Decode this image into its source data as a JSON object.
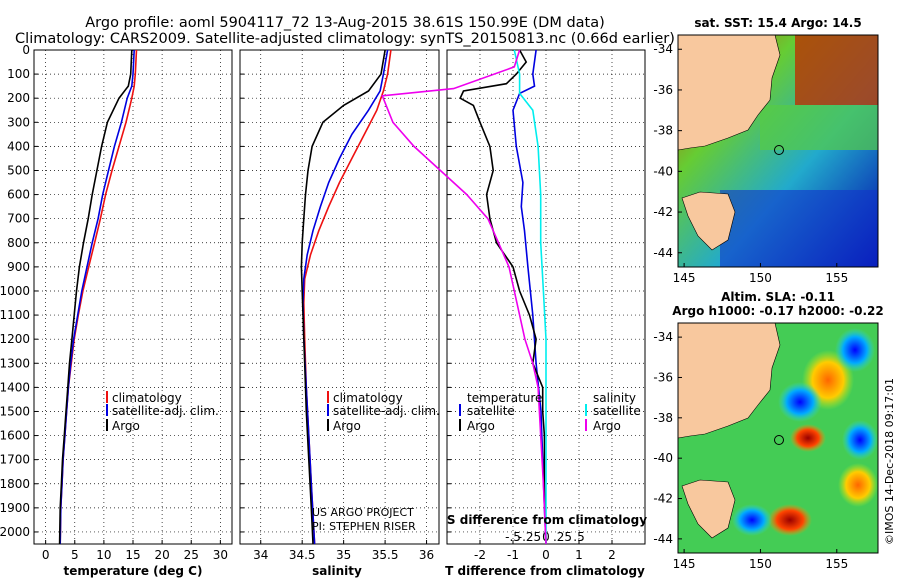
{
  "title_lines": [
    "Argo profile: aoml 5904117_72 13-Aug-2015 38.61S 150.99E (DM data)",
    "Climatology: CARS2009. Satellite-adjusted climatology: synTS_20150813.nc (0.66d earlier)"
  ],
  "credit_lines": [
    "US ARGO PROJECT",
    "PI: STEPHEN RISER"
  ],
  "timestamp": "©IMOS 14-Dec-2018 09:17:01",
  "legend_left": [
    "climatology",
    "satellite-adj. clim.",
    "Argo"
  ],
  "legend_diff": {
    "temperature_header": "temperature",
    "salinity_header": "salinity",
    "labels": [
      "satellite",
      "Argo"
    ]
  },
  "colors": {
    "climatology": "#ee1111",
    "satellite": "#0000e0",
    "argo": "#000000",
    "s_satellite": "#00eeee",
    "s_argo": "#ee00ee",
    "land": "#f8c89e"
  },
  "maps": [
    {
      "title": "sat. SST: 15.4 Argo: 14.5",
      "xticks": [
        "145",
        "150",
        "155"
      ],
      "yticks": [
        "-34",
        "-36",
        "-38",
        "-40",
        "-42",
        "-44"
      ]
    },
    {
      "title_lines": [
        "Altim. SLA: -0.11",
        "Argo h1000: -0.17 h2000: -0.22"
      ],
      "xticks": [
        "145",
        "150",
        "155"
      ],
      "yticks": [
        "-34",
        "-36",
        "-38",
        "-40",
        "-42",
        "-44"
      ]
    }
  ],
  "chart_data": [
    {
      "type": "line",
      "xlabel": "temperature (deg C)",
      "ylabel": "",
      "xlim": [
        -2,
        32
      ],
      "ylim": [
        2050,
        0
      ],
      "xticks": [
        0,
        5,
        10,
        15,
        20,
        25,
        30
      ],
      "yticks": [
        0,
        100,
        200,
        300,
        400,
        500,
        600,
        700,
        800,
        900,
        1000,
        1100,
        1200,
        1300,
        1400,
        1500,
        1600,
        1700,
        1800,
        1900,
        2000
      ],
      "series": [
        {
          "name": "climatology",
          "color_key": "climatology",
          "points": [
            [
              15.6,
              0
            ],
            [
              15.4,
              100
            ],
            [
              15.2,
              150
            ],
            [
              14.8,
              200
            ],
            [
              13.8,
              300
            ],
            [
              12.6,
              400
            ],
            [
              11.4,
              500
            ],
            [
              10.3,
              600
            ],
            [
              9.4,
              700
            ],
            [
              8.4,
              800
            ],
            [
              7.4,
              900
            ],
            [
              6.4,
              1000
            ],
            [
              5.6,
              1100
            ],
            [
              4.9,
              1200
            ],
            [
              4.4,
              1300
            ],
            [
              3.9,
              1400
            ],
            [
              3.6,
              1500
            ],
            [
              3.3,
              1600
            ],
            [
              3.0,
              1700
            ],
            [
              2.8,
              1800
            ],
            [
              2.6,
              1900
            ],
            [
              2.5,
              2050
            ]
          ]
        },
        {
          "name": "satellite-adj. clim.",
          "color_key": "satellite",
          "points": [
            [
              15.2,
              0
            ],
            [
              15.0,
              100
            ],
            [
              14.8,
              150
            ],
            [
              14.0,
              200
            ],
            [
              13.0,
              300
            ],
            [
              11.8,
              400
            ],
            [
              10.8,
              500
            ],
            [
              9.8,
              600
            ],
            [
              9.0,
              700
            ],
            [
              8.0,
              800
            ],
            [
              7.1,
              900
            ],
            [
              6.2,
              1000
            ],
            [
              5.5,
              1100
            ],
            [
              4.8,
              1200
            ],
            [
              4.3,
              1300
            ],
            [
              3.9,
              1400
            ],
            [
              3.6,
              1500
            ],
            [
              3.3,
              1600
            ],
            [
              3.0,
              1700
            ],
            [
              2.8,
              1800
            ],
            [
              2.6,
              1900
            ],
            [
              2.5,
              2050
            ]
          ]
        },
        {
          "name": "Argo",
          "color_key": "argo",
          "points": [
            [
              14.8,
              0
            ],
            [
              14.6,
              100
            ],
            [
              14.2,
              150
            ],
            [
              12.6,
              200
            ],
            [
              10.6,
              300
            ],
            [
              9.6,
              400
            ],
            [
              8.8,
              500
            ],
            [
              8.0,
              600
            ],
            [
              7.3,
              700
            ],
            [
              6.5,
              800
            ],
            [
              5.8,
              900
            ],
            [
              5.3,
              1000
            ],
            [
              4.9,
              1100
            ],
            [
              4.5,
              1200
            ],
            [
              4.1,
              1300
            ],
            [
              3.8,
              1400
            ],
            [
              3.5,
              1500
            ],
            [
              3.2,
              1600
            ],
            [
              2.9,
              1700
            ],
            [
              2.7,
              1800
            ],
            [
              2.5,
              1900
            ],
            [
              2.4,
              2050
            ]
          ]
        }
      ]
    },
    {
      "type": "line",
      "xlabel": "salinity",
      "ylabel": "",
      "xlim": [
        33.75,
        36.15
      ],
      "ylim": [
        2050,
        0
      ],
      "xticks": [
        34,
        34.5,
        35,
        35.5,
        36
      ],
      "series": [
        {
          "name": "climatology",
          "color_key": "climatology",
          "points": [
            [
              35.57,
              0
            ],
            [
              35.53,
              100
            ],
            [
              35.48,
              170
            ],
            [
              35.4,
              250
            ],
            [
              35.25,
              350
            ],
            [
              35.1,
              450
            ],
            [
              34.95,
              550
            ],
            [
              34.82,
              650
            ],
            [
              34.7,
              750
            ],
            [
              34.6,
              850
            ],
            [
              34.53,
              950
            ],
            [
              34.52,
              1050
            ],
            [
              34.53,
              1200
            ],
            [
              34.55,
              1400
            ],
            [
              34.58,
              1600
            ],
            [
              34.61,
              1800
            ],
            [
              34.65,
              2050
            ]
          ]
        },
        {
          "name": "satellite-adj. clim.",
          "color_key": "satellite",
          "points": [
            [
              35.53,
              0
            ],
            [
              35.48,
              100
            ],
            [
              35.44,
              170
            ],
            [
              35.3,
              250
            ],
            [
              35.1,
              350
            ],
            [
              34.95,
              450
            ],
            [
              34.82,
              550
            ],
            [
              34.72,
              650
            ],
            [
              34.63,
              750
            ],
            [
              34.56,
              850
            ],
            [
              34.52,
              950
            ],
            [
              34.51,
              1050
            ],
            [
              34.52,
              1200
            ],
            [
              34.55,
              1400
            ],
            [
              34.58,
              1600
            ],
            [
              34.61,
              1800
            ],
            [
              34.65,
              2050
            ]
          ]
        },
        {
          "name": "Argo",
          "color_key": "argo",
          "points": [
            [
              35.5,
              0
            ],
            [
              35.45,
              100
            ],
            [
              35.3,
              170
            ],
            [
              35.0,
              230
            ],
            [
              34.75,
              300
            ],
            [
              34.62,
              400
            ],
            [
              34.57,
              500
            ],
            [
              34.54,
              600
            ],
            [
              34.52,
              700
            ],
            [
              34.5,
              800
            ],
            [
              34.49,
              900
            ],
            [
              34.5,
              1000
            ],
            [
              34.51,
              1100
            ],
            [
              34.53,
              1300
            ],
            [
              34.55,
              1500
            ],
            [
              34.58,
              1700
            ],
            [
              34.61,
              1900
            ],
            [
              34.63,
              2050
            ]
          ]
        }
      ]
    },
    {
      "type": "line",
      "xlabel": "T difference from climatology",
      "x2label": "S difference from climatology",
      "ylabel": "",
      "xlim": [
        -3,
        3
      ],
      "ylim": [
        2050,
        0
      ],
      "xticks": [
        -2,
        -1,
        0,
        1,
        2
      ],
      "x2ticks": [
        -0.5,
        -0.25,
        0,
        0.25,
        0.5
      ],
      "series": [
        {
          "name": "temperature satellite",
          "color_key": "satellite",
          "points": [
            [
              -0.3,
              0
            ],
            [
              -0.4,
              100
            ],
            [
              -0.35,
              150
            ],
            [
              -0.8,
              180
            ],
            [
              -1.0,
              250
            ],
            [
              -0.9,
              400
            ],
            [
              -0.7,
              550
            ],
            [
              -0.75,
              650
            ],
            [
              -0.65,
              750
            ],
            [
              -0.55,
              900
            ],
            [
              -0.4,
              1100
            ],
            [
              -0.3,
              1300
            ],
            [
              -0.15,
              1500
            ],
            [
              -0.1,
              1700
            ],
            [
              -0.05,
              1900
            ],
            [
              0,
              2050
            ]
          ]
        },
        {
          "name": "temperature Argo",
          "color_key": "argo",
          "points": [
            [
              -0.8,
              0
            ],
            [
              -0.6,
              50
            ],
            [
              -0.9,
              100
            ],
            [
              -1.2,
              140
            ],
            [
              -2.5,
              170
            ],
            [
              -2.6,
              200
            ],
            [
              -2.2,
              230
            ],
            [
              -2.0,
              300
            ],
            [
              -1.7,
              400
            ],
            [
              -1.6,
              500
            ],
            [
              -1.8,
              600
            ],
            [
              -1.7,
              700
            ],
            [
              -1.5,
              800
            ],
            [
              -1.0,
              900
            ],
            [
              -0.8,
              1000
            ],
            [
              -0.5,
              1100
            ],
            [
              -0.3,
              1200
            ],
            [
              -0.4,
              1300
            ],
            [
              -0.1,
              1400
            ],
            [
              -0.1,
              1500
            ],
            [
              -0.05,
              1600
            ],
            [
              -0.05,
              1800
            ],
            [
              0,
              2050
            ]
          ]
        },
        {
          "name": "salinity satellite",
          "color_key": "s_satellite",
          "points": [
            [
              -0.12,
              0
            ],
            [
              -0.1,
              100
            ],
            [
              -0.1,
              180
            ],
            [
              -0.05,
              250
            ],
            [
              -0.03,
              400
            ],
            [
              -0.02,
              600
            ],
            [
              -0.02,
              800
            ],
            [
              -0.01,
              1000
            ],
            [
              0,
              1200
            ],
            [
              0,
              1500
            ],
            [
              0,
              2050
            ]
          ]
        },
        {
          "name": "salinity Argo",
          "color_key": "s_argo",
          "points": [
            [
              -0.1,
              0
            ],
            [
              -0.12,
              70
            ],
            [
              -0.35,
              160
            ],
            [
              -0.62,
              190
            ],
            [
              -0.58,
              300
            ],
            [
              -0.5,
              400
            ],
            [
              -0.4,
              500
            ],
            [
              -0.3,
              600
            ],
            [
              -0.22,
              700
            ],
            [
              -0.18,
              800
            ],
            [
              -0.14,
              900
            ],
            [
              -0.12,
              1000
            ],
            [
              -0.1,
              1100
            ],
            [
              -0.08,
              1200
            ],
            [
              -0.05,
              1300
            ],
            [
              -0.03,
              1400
            ],
            [
              -0.02,
              1600
            ],
            [
              -0.01,
              1800
            ],
            [
              0,
              2050
            ]
          ]
        }
      ]
    }
  ]
}
